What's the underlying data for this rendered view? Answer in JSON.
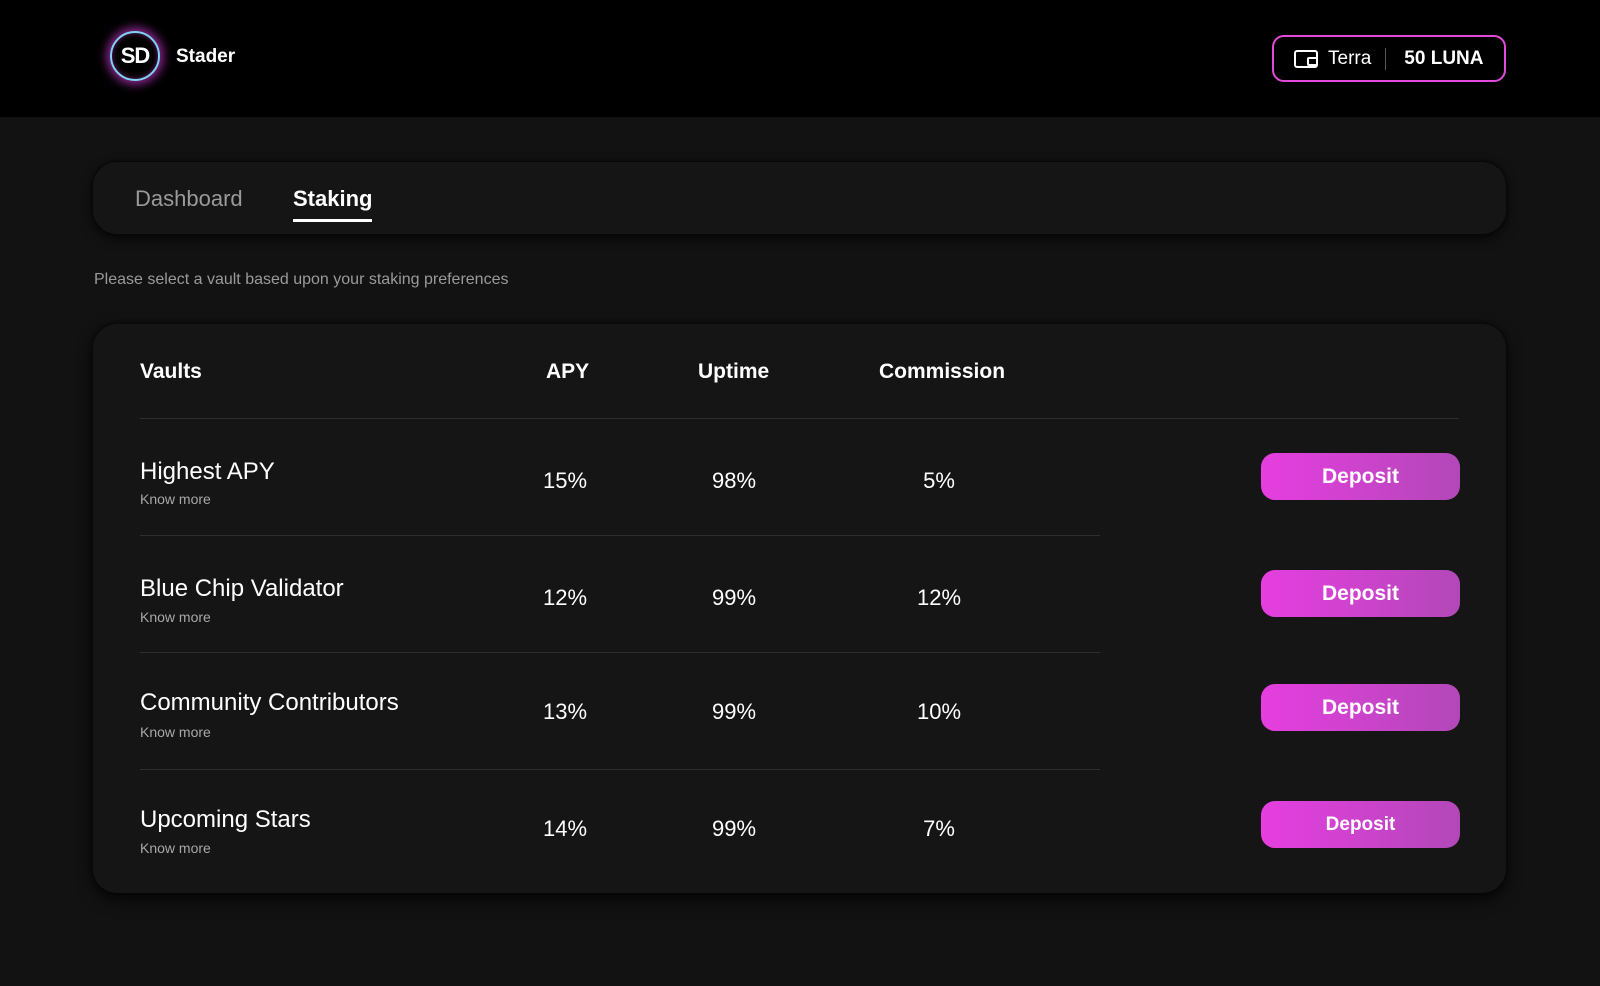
{
  "header": {
    "logo_text": "SD",
    "brand": "Stader",
    "wallet": {
      "network": "Terra",
      "balance": "50 LUNA",
      "icon": "wallet-icon"
    }
  },
  "tabs": [
    {
      "label": "Dashboard",
      "active": false
    },
    {
      "label": "Staking",
      "active": true
    }
  ],
  "subtitle": "Please select a vault based upon your staking preferences",
  "table": {
    "columns": [
      "Vaults",
      "APY",
      "Uptime",
      "Commission"
    ],
    "rows": [
      {
        "vault": "Highest APY",
        "link": "Know  more",
        "apy": "15%",
        "uptime": "98%",
        "commission": "5%",
        "action": "Deposit"
      },
      {
        "vault": "Blue Chip Validator",
        "link": "Know more",
        "apy": "12%",
        "uptime": "99%",
        "commission": "12%",
        "action": "Deposit"
      },
      {
        "vault": "Community Contributors",
        "link": "Know more",
        "apy": "13%",
        "uptime": "99%",
        "commission": "10%",
        "action": "Deposit"
      },
      {
        "vault": "Upcoming Stars",
        "link": "Know more",
        "apy": "14%",
        "uptime": "99%",
        "commission": "7%",
        "action": "Deposit"
      }
    ]
  },
  "colors": {
    "background": "#121212",
    "topbar": "#000000",
    "accent": "#e63ee0",
    "accent_end": "#b248b8"
  }
}
